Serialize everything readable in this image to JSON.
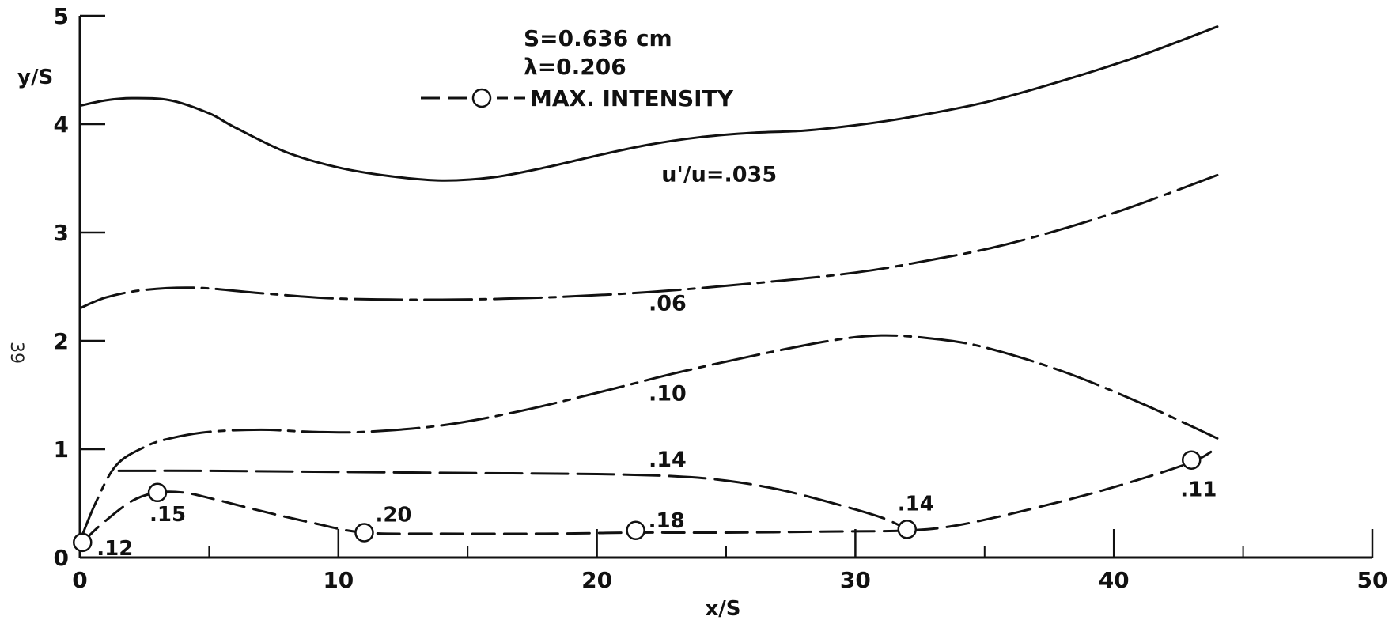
{
  "chart_data": {
    "type": "line",
    "xlabel": "x/S",
    "ylabel": "y/S",
    "xlim": [
      0,
      50
    ],
    "ylim": [
      0,
      5
    ],
    "xticks": [
      0,
      10,
      20,
      30,
      40,
      50
    ],
    "yticks": [
      0,
      1,
      2,
      3,
      4,
      5
    ],
    "xtick_labels": [
      "0",
      "10",
      "20",
      "30",
      "40",
      "50"
    ],
    "ytick_labels": [
      "0",
      "1",
      "2",
      "3",
      "4",
      "5"
    ],
    "grid": false,
    "parameters": [
      "S=0.636 cm",
      "λ=0.206"
    ],
    "legend": {
      "marker": "circle",
      "line_style": "dashed",
      "label": "MAX. INTENSITY",
      "placement": "top-center"
    },
    "series": [
      {
        "name": "u'/u=.035",
        "style": "solid",
        "points": [
          [
            0,
            4.17
          ],
          [
            1,
            4.22
          ],
          [
            2,
            4.24
          ],
          [
            3.5,
            4.22
          ],
          [
            5,
            4.1
          ],
          [
            6,
            3.97
          ],
          [
            8,
            3.74
          ],
          [
            10,
            3.6
          ],
          [
            12,
            3.52
          ],
          [
            14,
            3.48
          ],
          [
            16,
            3.51
          ],
          [
            18,
            3.6
          ],
          [
            20,
            3.71
          ],
          [
            22,
            3.81
          ],
          [
            24,
            3.88
          ],
          [
            26,
            3.92
          ],
          [
            28,
            3.94
          ],
          [
            30,
            3.99
          ],
          [
            32,
            4.06
          ],
          [
            35,
            4.2
          ],
          [
            38,
            4.4
          ],
          [
            41,
            4.63
          ],
          [
            44,
            4.9
          ]
        ]
      },
      {
        "name": ".06",
        "style": "dash-dot",
        "points": [
          [
            0,
            2.3
          ],
          [
            1,
            2.4
          ],
          [
            2.5,
            2.47
          ],
          [
            4.5,
            2.49
          ],
          [
            7,
            2.44
          ],
          [
            10,
            2.39
          ],
          [
            14,
            2.38
          ],
          [
            18,
            2.4
          ],
          [
            22,
            2.45
          ],
          [
            26,
            2.53
          ],
          [
            30,
            2.63
          ],
          [
            33,
            2.75
          ],
          [
            36,
            2.9
          ],
          [
            40,
            3.18
          ],
          [
            44,
            3.53
          ]
        ]
      },
      {
        "name": ".10",
        "style": "dash-dot",
        "points": [
          [
            0,
            0.15
          ],
          [
            0.6,
            0.5
          ],
          [
            1.4,
            0.85
          ],
          [
            2.5,
            1.02
          ],
          [
            3.5,
            1.1
          ],
          [
            5,
            1.16
          ],
          [
            7,
            1.18
          ],
          [
            9,
            1.16
          ],
          [
            11,
            1.16
          ],
          [
            14,
            1.22
          ],
          [
            17,
            1.35
          ],
          [
            20,
            1.52
          ],
          [
            23,
            1.7
          ],
          [
            26,
            1.86
          ],
          [
            29,
            2.0
          ],
          [
            31,
            2.05
          ],
          [
            33,
            2.02
          ],
          [
            35,
            1.94
          ],
          [
            38,
            1.72
          ],
          [
            41,
            1.43
          ],
          [
            44,
            1.1
          ]
        ]
      },
      {
        "name": ".14",
        "style": "long-dash",
        "points": [
          [
            1.5,
            0.8
          ],
          [
            5,
            0.8
          ],
          [
            10,
            0.79
          ],
          [
            15,
            0.78
          ],
          [
            20,
            0.77
          ],
          [
            23,
            0.75
          ],
          [
            25,
            0.71
          ],
          [
            27,
            0.63
          ],
          [
            29,
            0.51
          ],
          [
            31,
            0.37
          ],
          [
            32,
            0.26
          ]
        ]
      },
      {
        "name": "MAX. INTENSITY",
        "style": "dashed",
        "points": [
          [
            0.1,
            0.14
          ],
          [
            0.8,
            0.3
          ],
          [
            2,
            0.52
          ],
          [
            3,
            0.6
          ],
          [
            4,
            0.6
          ],
          [
            5,
            0.55
          ],
          [
            7,
            0.43
          ],
          [
            9,
            0.32
          ],
          [
            11,
            0.23
          ],
          [
            14,
            0.22
          ],
          [
            18,
            0.22
          ],
          [
            21.5,
            0.23
          ],
          [
            25,
            0.23
          ],
          [
            29,
            0.24
          ],
          [
            32,
            0.25
          ],
          [
            34,
            0.3
          ],
          [
            37,
            0.46
          ],
          [
            40,
            0.65
          ],
          [
            43,
            0.88
          ],
          [
            44,
            1.02
          ]
        ]
      }
    ],
    "max_intensity_points": [
      {
        "x": 0.1,
        "y": 0.14,
        "label": ".12"
      },
      {
        "x": 3,
        "y": 0.6,
        "label": ".15"
      },
      {
        "x": 11,
        "y": 0.23,
        "label": ".20"
      },
      {
        "x": 21.5,
        "y": 0.25,
        "label": ".18"
      },
      {
        "x": 32,
        "y": 0.26,
        "label": ".14"
      },
      {
        "x": 43,
        "y": 0.9,
        "label": ".11"
      }
    ],
    "annotations": [
      {
        "x": 22.5,
        "y": 3.47,
        "text": "u'/u=.035"
      },
      {
        "x": 22,
        "y": 2.28,
        "text": ".06"
      },
      {
        "x": 22,
        "y": 1.45,
        "text": ".10"
      },
      {
        "x": 22,
        "y": 0.84,
        "text": ".14"
      }
    ],
    "page_number": "39"
  }
}
